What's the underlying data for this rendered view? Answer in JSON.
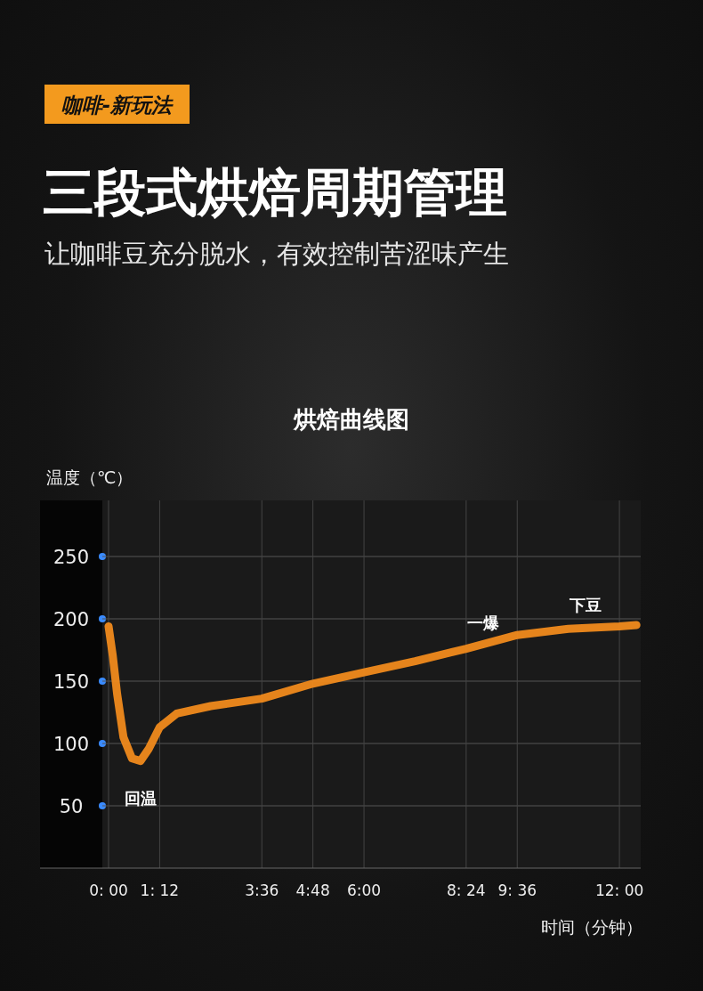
{
  "chart_data": {
    "type": "line",
    "title": "三段式烘焙周期管理",
    "subtitle": "让咖啡豆充分脱水，有效控制苦涩味产生",
    "annotations": [
      "咖啡-新玩法",
      "烘焙曲线图",
      {
        "text": "回温",
        "x": 0.75,
        "y": 86
      },
      {
        "text": "一爆",
        "x": 8.8,
        "y": 178
      },
      {
        "text": "下豆",
        "x": 11.2,
        "y": 192
      }
    ],
    "xlabel": "时间（分钟）",
    "ylabel": "温度（℃）",
    "x": [
      0,
      0.1,
      0.2,
      0.35,
      0.55,
      0.75,
      0.95,
      1.2,
      1.6,
      2.4,
      3.6,
      4.8,
      6,
      7.2,
      8.4,
      9.6,
      10.8,
      12,
      12.4
    ],
    "series": [
      {
        "color": "#f08a1c",
        "values": [
          194,
          170,
          140,
          105,
          88,
          86,
          96,
          113,
          124,
          130,
          136,
          148,
          157,
          166,
          176,
          187,
          192,
          194,
          195
        ]
      }
    ],
    "xlim": [
      0,
      12.5
    ],
    "ylim": [
      0,
      295
    ],
    "xticks": [
      {
        "value": 0,
        "label": "0: 00"
      },
      {
        "value": 1.2,
        "label": "1: 12"
      },
      {
        "value": 3.6,
        "label": "3:36"
      },
      {
        "value": 4.8,
        "label": "4:48"
      },
      {
        "value": 6,
        "label": "6:00"
      },
      {
        "value": 8.4,
        "label": "8: 24"
      },
      {
        "value": 9.6,
        "label": "9: 36"
      },
      {
        "value": 12,
        "label": "12: 00"
      }
    ],
    "yticks": [
      50,
      100,
      150,
      200,
      250
    ],
    "grid": true,
    "line_style": "solid",
    "marker": "none"
  }
}
